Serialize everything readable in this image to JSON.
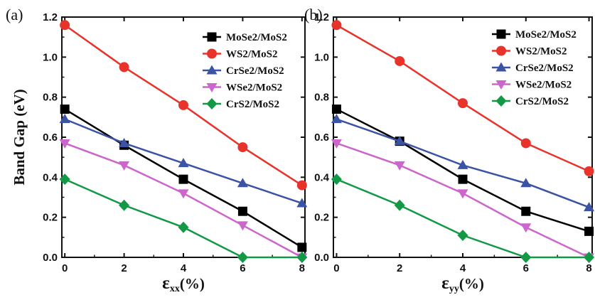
{
  "chart_data": [
    {
      "type": "line",
      "panel_tag": "(a)",
      "xlabel_main": "ε",
      "xlabel_sub": "xx",
      "xlabel_suffix": "(%)",
      "ylabel": "Band Gap (eV)",
      "x": [
        0,
        2,
        4,
        6,
        8
      ],
      "xlim": [
        -0.1,
        8.1
      ],
      "ylim": [
        0.0,
        1.2
      ],
      "xticks": [
        "0",
        "2",
        "4",
        "6",
        "8"
      ],
      "yticks": [
        "0.0",
        "0.2",
        "0.4",
        "0.6",
        "0.8",
        "1.0",
        "1.2"
      ],
      "legend_position": "top-right",
      "grid": false,
      "series": [
        {
          "name": "MoSe2/MoS2",
          "color": "#000000",
          "marker": "square",
          "values": [
            0.74,
            0.56,
            0.39,
            0.23,
            0.05
          ]
        },
        {
          "name": "WS2/MoS2",
          "color": "#e8332a",
          "marker": "circle",
          "values": [
            1.16,
            0.95,
            0.76,
            0.55,
            0.36
          ]
        },
        {
          "name": "CrSe2/MoS2",
          "color": "#3b53a4",
          "marker": "triangle-up",
          "values": [
            0.69,
            0.57,
            0.47,
            0.37,
            0.27
          ]
        },
        {
          "name": "WSe2/MoS2",
          "color": "#cc66cc",
          "marker": "triangle-down",
          "values": [
            0.57,
            0.46,
            0.32,
            0.16,
            0.0
          ]
        },
        {
          "name": "CrS2/MoS2",
          "color": "#119945",
          "marker": "diamond",
          "values": [
            0.39,
            0.26,
            0.15,
            0.0,
            0.0
          ]
        }
      ]
    },
    {
      "type": "line",
      "panel_tag": "(b)",
      "xlabel_main": "ε",
      "xlabel_sub": "yy",
      "xlabel_suffix": "(%)",
      "ylabel": "",
      "x": [
        0,
        2,
        4,
        6,
        8
      ],
      "xlim": [
        -0.1,
        8.1
      ],
      "ylim": [
        0.0,
        1.2
      ],
      "xticks": [
        "0",
        "2",
        "4",
        "6",
        "8"
      ],
      "yticks": [
        "0.0",
        "0.2",
        "0.4",
        "0.6",
        "0.8",
        "1.0",
        "1.2"
      ],
      "legend_position": "top-right",
      "grid": false,
      "series": [
        {
          "name": "MoSe2/MoS2",
          "color": "#000000",
          "marker": "square",
          "values": [
            0.74,
            0.58,
            0.39,
            0.23,
            0.13
          ]
        },
        {
          "name": "WS2/MoS2",
          "color": "#e8332a",
          "marker": "circle",
          "values": [
            1.16,
            0.98,
            0.77,
            0.57,
            0.43
          ]
        },
        {
          "name": "CrSe2/MoS2",
          "color": "#3b53a4",
          "marker": "triangle-up",
          "values": [
            0.69,
            0.58,
            0.46,
            0.37,
            0.25
          ]
        },
        {
          "name": "WSe2/MoS2",
          "color": "#cc66cc",
          "marker": "triangle-down",
          "values": [
            0.57,
            0.46,
            0.32,
            0.15,
            0.0
          ]
        },
        {
          "name": "CrS2/MoS2",
          "color": "#119945",
          "marker": "diamond",
          "values": [
            0.39,
            0.26,
            0.11,
            0.0,
            0.0
          ]
        }
      ]
    }
  ]
}
